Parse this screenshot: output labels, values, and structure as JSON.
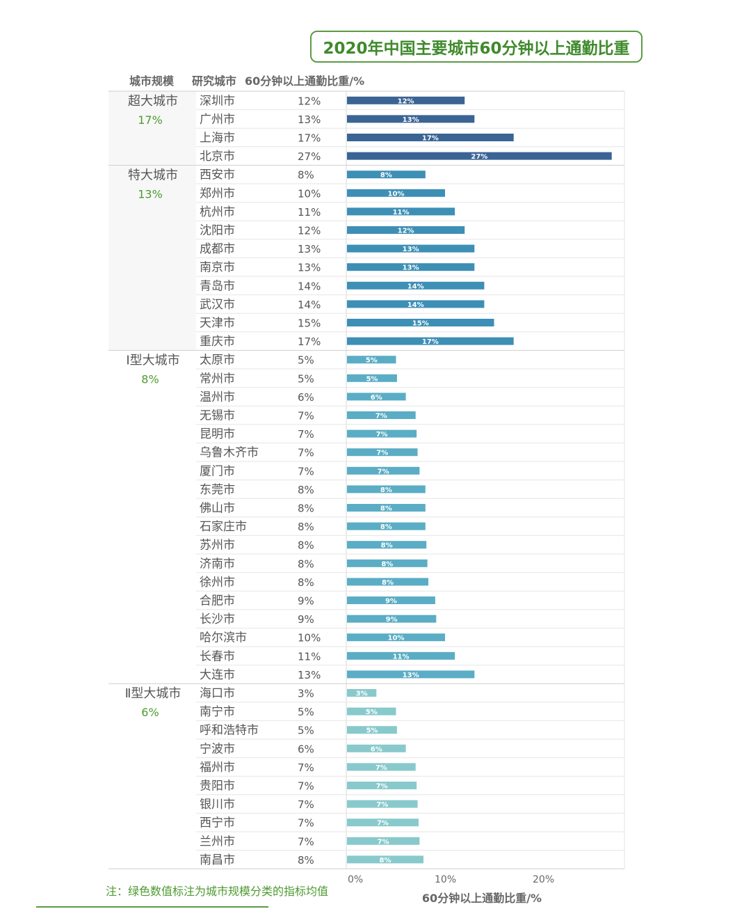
{
  "chart_data": {
    "type": "bar",
    "orientation": "horizontal",
    "title": "2020年中国主要城市60分钟以上通勤比重",
    "headers": {
      "size": "城市规模",
      "city": "研究城市",
      "value": "60分钟以上通勤比重/%"
    },
    "xlabel": "60分钟以上通勤比重/%",
    "xlim": [
      0,
      28
    ],
    "xticks": [
      0,
      10,
      20
    ],
    "xtick_labels": [
      "0%",
      "10%",
      "20%"
    ],
    "groups": [
      {
        "name": "超大城市",
        "avg": "17%",
        "color": "#3a6494",
        "label_color": "#ffffff",
        "cities": [
          {
            "name": "深圳市",
            "value": 12,
            "label": "12%"
          },
          {
            "name": "广州市",
            "value": 13,
            "label": "13%"
          },
          {
            "name": "上海市",
            "value": 17,
            "label": "17%"
          },
          {
            "name": "北京市",
            "value": 27,
            "label": "27%"
          }
        ]
      },
      {
        "name": "特大城市",
        "avg": "13%",
        "color": "#3d8fb5",
        "label_color": "#ffffff",
        "cities": [
          {
            "name": "西安市",
            "value": 8,
            "label": "8%"
          },
          {
            "name": "郑州市",
            "value": 10,
            "label": "10%"
          },
          {
            "name": "杭州市",
            "value": 11,
            "label": "11%"
          },
          {
            "name": "沈阳市",
            "value": 12,
            "label": "12%"
          },
          {
            "name": "成都市",
            "value": 13,
            "label": "13%"
          },
          {
            "name": "南京市",
            "value": 13,
            "label": "13%"
          },
          {
            "name": "青岛市",
            "value": 14,
            "label": "14%"
          },
          {
            "name": "武汉市",
            "value": 14,
            "label": "14%"
          },
          {
            "name": "天津市",
            "value": 15,
            "label": "15%"
          },
          {
            "name": "重庆市",
            "value": 17,
            "label": "17%"
          }
        ]
      },
      {
        "name": "Ⅰ型大城市",
        "avg": "8%",
        "color": "#5aadc4",
        "label_color": "#ffffff",
        "cities": [
          {
            "name": "太原市",
            "value": 5,
            "label": "5%"
          },
          {
            "name": "常州市",
            "value": 5.1,
            "label": "5%"
          },
          {
            "name": "温州市",
            "value": 6,
            "label": "6%"
          },
          {
            "name": "无锡市",
            "value": 7,
            "label": "7%"
          },
          {
            "name": "昆明市",
            "value": 7.1,
            "label": "7%"
          },
          {
            "name": "乌鲁木齐市",
            "value": 7.2,
            "label": "7%"
          },
          {
            "name": "厦门市",
            "value": 7.4,
            "label": "7%"
          },
          {
            "name": "东莞市",
            "value": 8,
            "label": "8%"
          },
          {
            "name": "佛山市",
            "value": 8,
            "label": "8%"
          },
          {
            "name": "石家庄市",
            "value": 8,
            "label": "8%"
          },
          {
            "name": "苏州市",
            "value": 8.1,
            "label": "8%"
          },
          {
            "name": "济南市",
            "value": 8.2,
            "label": "8%"
          },
          {
            "name": "徐州市",
            "value": 8.3,
            "label": "8%"
          },
          {
            "name": "合肥市",
            "value": 9,
            "label": "9%"
          },
          {
            "name": "长沙市",
            "value": 9.1,
            "label": "9%"
          },
          {
            "name": "哈尔滨市",
            "value": 10,
            "label": "10%"
          },
          {
            "name": "长春市",
            "value": 11,
            "label": "11%"
          },
          {
            "name": "大连市",
            "value": 13,
            "label": "13%"
          }
        ]
      },
      {
        "name": "Ⅱ型大城市",
        "avg": "6%",
        "color": "#88c9cc",
        "label_color": "#ffffff",
        "cities": [
          {
            "name": "海口市",
            "value": 3,
            "label": "3%"
          },
          {
            "name": "南宁市",
            "value": 5,
            "label": "5%"
          },
          {
            "name": "呼和浩特市",
            "value": 5.1,
            "label": "5%"
          },
          {
            "name": "宁波市",
            "value": 6,
            "label": "6%"
          },
          {
            "name": "福州市",
            "value": 7,
            "label": "7%"
          },
          {
            "name": "贵阳市",
            "value": 7.1,
            "label": "7%"
          },
          {
            "name": "银川市",
            "value": 7.2,
            "label": "7%"
          },
          {
            "name": "西宁市",
            "value": 7.3,
            "label": "7%"
          },
          {
            "name": "兰州市",
            "value": 7.4,
            "label": "7%"
          },
          {
            "name": "南昌市",
            "value": 7.8,
            "label": "8%"
          }
        ]
      }
    ]
  },
  "note": "注：绿色数值标注为城市规模分类的指标均值"
}
